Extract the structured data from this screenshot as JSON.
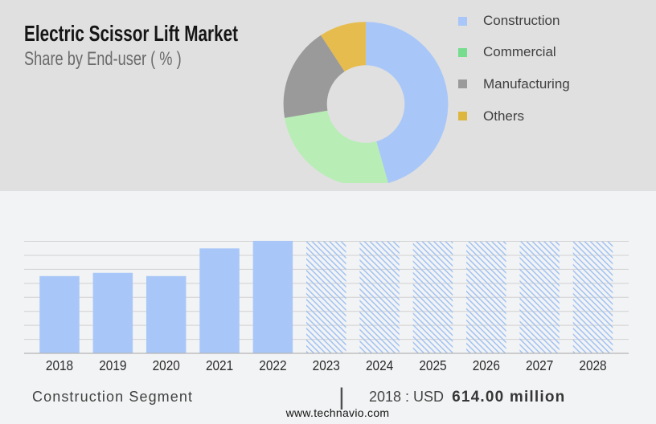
{
  "page": {
    "background_top": "#e0e0e0",
    "background_bottom": "#f2f3f4"
  },
  "header": {
    "title": "Electric Scissor Lift Market",
    "subtitle": "Share by End-user ( % )"
  },
  "chart_data": [
    {
      "type": "pie",
      "title": "Share by End-user ( % )",
      "labels": [
        "Construction",
        "Commercial",
        "Manufacturing",
        "Others"
      ],
      "values": [
        45.6,
        26.7,
        18.5,
        9.2
      ],
      "unit": "%",
      "donut": true,
      "start_angle_deg": 0,
      "clockwise": true,
      "segment_colors": [
        "#a8c7f8",
        "#b8edb5",
        "#9a9a9a",
        "#e7bc4e"
      ],
      "legend_colors": [
        "#a8c7f8",
        "#75dd8d",
        "#9a9a9a",
        "#ddb63f"
      ],
      "legend_position": "right"
    },
    {
      "type": "bar",
      "categories": [
        "2018",
        "2019",
        "2020",
        "2021",
        "2022",
        "2023",
        "2024",
        "2025",
        "2026",
        "2027",
        "2028"
      ],
      "values": [
        614,
        640,
        614,
        834,
        894,
        890,
        890,
        890,
        890,
        890,
        890
      ],
      "forecast": [
        false,
        false,
        false,
        false,
        false,
        true,
        true,
        true,
        true,
        true,
        true
      ],
      "unit": "USD million",
      "labeled_value": {
        "year": "2018",
        "value": 614.0,
        "text": "2018 : USD 614.00 million"
      },
      "bar_color": "#a8c7f8",
      "hatch_color": "#9fc1f2",
      "grid": true,
      "ylim": [
        0,
        900
      ],
      "grid_color": "#d2d2d2",
      "axis_color": "#b5b5b5",
      "xlabel": "",
      "ylabel": ""
    }
  ],
  "caption": {
    "segment_label": "Construction Segment",
    "separator": "|",
    "value_prefix": "2018 : USD ",
    "value_bold": "614.00 million"
  },
  "footer": {
    "website": "www.technavio.com"
  }
}
